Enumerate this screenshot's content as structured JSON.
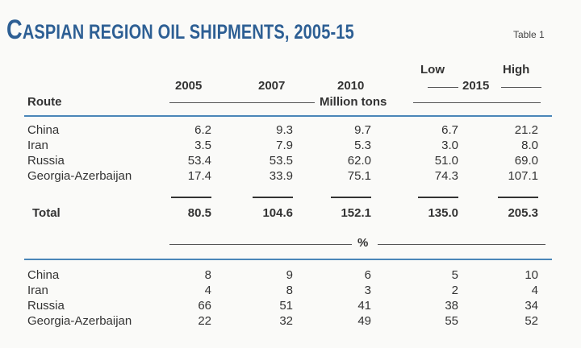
{
  "title": {
    "first": "C",
    "rest": "ASPIAN REGION OIL SHIPMENTS, 2005-15"
  },
  "table_label": "Table 1",
  "header": {
    "route": "Route",
    "years": [
      "2005",
      "2007",
      "2010"
    ],
    "low": "Low",
    "high": "High",
    "year_2015": "2015",
    "units_tons": "Million tons",
    "units_pct": "%"
  },
  "tons_rows": [
    {
      "route": "China",
      "values": [
        "6.2",
        "9.3",
        "9.7",
        "6.7",
        "21.2"
      ]
    },
    {
      "route": "Iran",
      "values": [
        "3.5",
        "7.9",
        "5.3",
        "3.0",
        "8.0"
      ]
    },
    {
      "route": "Russia",
      "values": [
        "53.4",
        "53.5",
        "62.0",
        "51.0",
        "69.0"
      ]
    },
    {
      "route": "Georgia-Azerbaijan",
      "values": [
        "17.4",
        "33.9",
        "75.1",
        "74.3",
        "107.1"
      ]
    }
  ],
  "total": {
    "label": "Total",
    "values": [
      "80.5",
      "104.6",
      "152.1",
      "135.0",
      "205.3"
    ]
  },
  "pct_rows": [
    {
      "route": "China",
      "values": [
        "8",
        "9",
        "6",
        "5",
        "10"
      ]
    },
    {
      "route": "Iran",
      "values": [
        "4",
        "8",
        "3",
        "2",
        "4"
      ]
    },
    {
      "route": "Russia",
      "values": [
        "66",
        "51",
        "41",
        "38",
        "34"
      ]
    },
    {
      "route": "Georgia-Azerbaijan",
      "values": [
        "22",
        "32",
        "49",
        "55",
        "52"
      ]
    }
  ],
  "colors": {
    "title": "#2d5f94",
    "rule_blue": "#4a86b8"
  }
}
